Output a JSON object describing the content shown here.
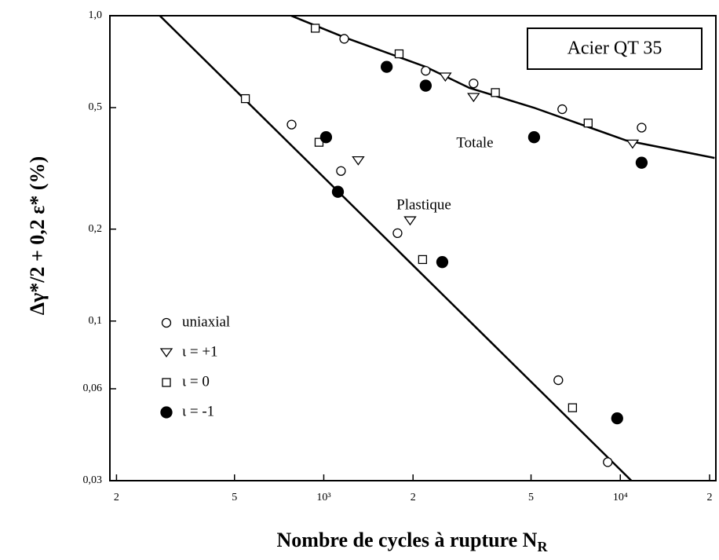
{
  "chart_data": {
    "type": "scatter",
    "annotations": {
      "box": "Acier QT 35",
      "total": "Totale",
      "plastic": "Plastique"
    },
    "y_label": "Δγ*/2 + 0,2 ε*     (%)",
    "x_label": {
      "text": "Nombre de cycles à rupture N",
      "sub": "R"
    },
    "log_x": true,
    "log_y": true,
    "grid": false,
    "xlim": [
      190,
      21000
    ],
    "ylim": [
      0.03,
      1
    ],
    "xticks": [
      {
        "value": 200,
        "label": "2"
      },
      {
        "value": 500,
        "label": "5"
      },
      {
        "value": 1000,
        "label": "10³"
      },
      {
        "value": 2000,
        "label": "2"
      },
      {
        "value": 5000,
        "label": "5"
      },
      {
        "value": 10000,
        "label": "10⁴"
      },
      {
        "value": 20000,
        "label": "2"
      }
    ],
    "yticks": [
      {
        "value": 1,
        "label": "1,0"
      },
      {
        "value": 0.5,
        "label": "0,5"
      },
      {
        "value": 0.2,
        "label": "0,2"
      },
      {
        "value": 0.1,
        "label": "0,1"
      },
      {
        "value": 0.06,
        "label": "0,06"
      },
      {
        "value": 0.03,
        "label": "0,03"
      }
    ],
    "series": [
      {
        "name": "uniaxial",
        "marker": "circle-open",
        "color": "#000000",
        "x": [
          1172,
          2207,
          3200,
          6370,
          11800,
          779,
          1143,
          1773,
          6180,
          9070
        ],
        "values": [
          0.84,
          0.66,
          0.6,
          0.494,
          0.43,
          0.44,
          0.31,
          0.194,
          0.064,
          0.0345
        ]
      },
      {
        "name": "ι = +1",
        "marker": "triangle-down-open",
        "color": "#000000",
        "x": [
          2570,
          3200,
          11000,
          1307,
          1955
        ],
        "values": [
          0.63,
          0.54,
          0.38,
          0.335,
          0.213
        ]
      },
      {
        "name": "ι = 0",
        "marker": "square-open",
        "color": "#000000",
        "x": [
          936,
          1795,
          3790,
          7790,
          544,
          964,
          2154,
          6900
        ],
        "values": [
          0.91,
          0.75,
          0.56,
          0.445,
          0.535,
          0.385,
          0.159,
          0.052
        ]
      },
      {
        "name": "ι = -1",
        "marker": "circle-filled",
        "color": "#000000",
        "x": [
          1630,
          2207,
          5120,
          11800,
          1018,
          1116,
          2510,
          9760
        ],
        "values": [
          0.68,
          0.59,
          0.4,
          0.33,
          0.4,
          0.265,
          0.156,
          0.048
        ]
      }
    ],
    "fits": [
      {
        "x": [
          776,
          1172,
          2207,
          3100,
          5100,
          10500,
          20800
        ],
        "values": [
          1,
          0.85,
          0.68,
          0.58,
          0.5,
          0.39,
          0.342
        ]
      },
      {
        "x": [
          280,
          10900
        ],
        "values": [
          1,
          0.03
        ]
      }
    ]
  }
}
